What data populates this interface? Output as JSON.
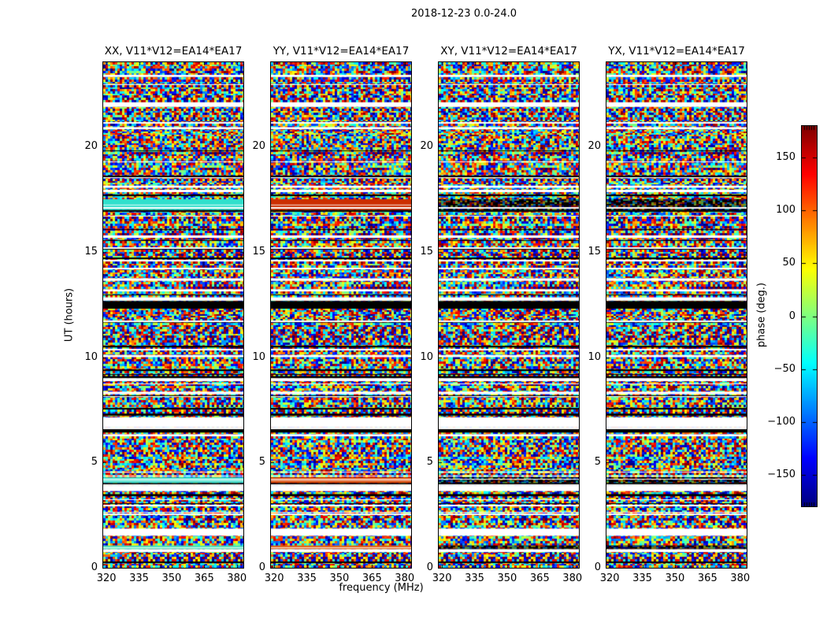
{
  "figure": {
    "title": "2018-12-23 0.0-24.0"
  },
  "chart_data": {
    "type": "heatmap",
    "title": "2018-12-23 0.0-24.0",
    "description": "Four dynamic-spectrum (waterfall) panels of interferometric visibility phase versus frequency and time for baseline EA14*EA17; phase is noise-like (uniformly scattered between -180 and +180 deg) with horizontal flagged gaps (white), zero-amplitude rows (black) and a few coherent smooth-phase bands.",
    "panels": [
      {
        "pol": "XX",
        "title": "XX, V11*V12=EA14*EA17"
      },
      {
        "pol": "YY",
        "title": "YY, V11*V12=EA14*EA17"
      },
      {
        "pol": "XY",
        "title": "XY, V11*V12=EA14*EA17"
      },
      {
        "pol": "YX",
        "title": "YX, V11*V12=EA14*EA17"
      }
    ],
    "xlabel": "frequency (MHz)",
    "ylabel": "UT (hours)",
    "xlim": [
      318.5,
      383.0
    ],
    "ylim": [
      0,
      24
    ],
    "x_ticks": {
      "values": [
        320,
        335,
        350,
        365,
        380
      ],
      "labels": [
        "320",
        "335",
        "350",
        "365",
        "380"
      ]
    },
    "y_ticks": {
      "values": [
        0,
        5,
        10,
        15,
        20
      ],
      "labels": [
        "0",
        "5",
        "10",
        "15",
        "20"
      ]
    },
    "grid": false,
    "colorbar": {
      "label": "phase (deg.)",
      "colormap": "jet",
      "vmin": -180,
      "vmax": 180,
      "tick_values": [
        150,
        100,
        50,
        0,
        -50,
        -100,
        -150
      ],
      "tick_labels": [
        "150",
        "100",
        "50",
        "0",
        "−50",
        "−100",
        "−150"
      ]
    },
    "flags": {
      "white_gaps_ut": [
        [
          23.3,
          23.4
        ],
        [
          21.88,
          22.1
        ],
        [
          20.82,
          20.92
        ],
        [
          18.5,
          18.62
        ],
        [
          18.04,
          18.14
        ],
        [
          15.66,
          15.78
        ],
        [
          13.62,
          13.74
        ],
        [
          13.12,
          13.22
        ],
        [
          12.68,
          12.84
        ],
        [
          10.0,
          10.1
        ],
        [
          8.86,
          9.0
        ],
        [
          8.24,
          8.36
        ],
        [
          6.66,
          7.14
        ],
        [
          6.24,
          6.34
        ],
        [
          3.64,
          3.92
        ],
        [
          1.52,
          1.86
        ],
        [
          0.8,
          0.88
        ]
      ],
      "black_rows_ut": [
        [
          17.64,
          17.72
        ],
        [
          16.9,
          16.98
        ],
        [
          15.1,
          15.18
        ],
        [
          12.3,
          12.66
        ],
        [
          11.64,
          11.72
        ],
        [
          10.46,
          10.54
        ],
        [
          9.34,
          9.42
        ],
        [
          9.0,
          9.1
        ],
        [
          7.22,
          7.32
        ],
        [
          6.42,
          6.6
        ],
        [
          3.92,
          4.02
        ],
        [
          3.4,
          3.5
        ]
      ],
      "smooth_bands": [
        {
          "ut_range": [
            16.98,
            17.5
          ],
          "colors": {
            "XX": "#30e0cc",
            "YY": "#cc2e00",
            "XY": "dark",
            "YX": "dark"
          }
        },
        {
          "ut_range": [
            4.02,
            4.3
          ],
          "colors": {
            "XX": "#40dcc8",
            "YY": "#d84400",
            "XY": "dark",
            "YX": "dark"
          }
        },
        {
          "ut_range": [
            0.88,
            1.06
          ],
          "colors": {
            "XX": "#50e0b8",
            "YY": "#e06418",
            "XY": "dark",
            "YX": "dark"
          }
        }
      ]
    },
    "noise_seed": 42
  }
}
